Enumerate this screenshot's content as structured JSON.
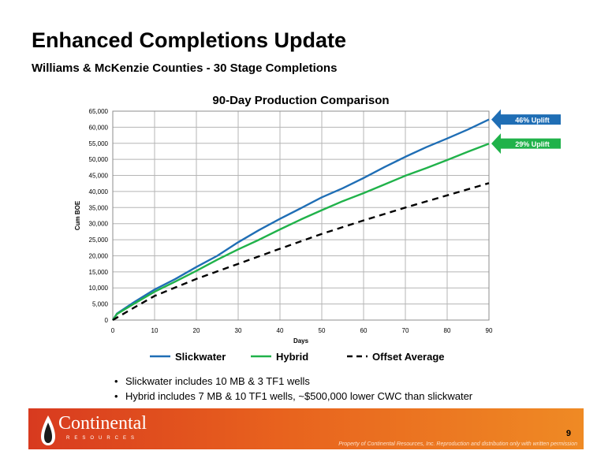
{
  "slide": {
    "title": "Enhanced Completions Update",
    "subtitle": "Williams & McKenzie Counties - 30 Stage Completions"
  },
  "chart_data": {
    "type": "line",
    "title": "90-Day Production Comparison",
    "xlabel": "Days",
    "ylabel": "Cum BOE",
    "xlim": [
      0,
      90
    ],
    "ylim": [
      0,
      65000
    ],
    "x_ticks": [
      0,
      10,
      20,
      30,
      40,
      50,
      60,
      70,
      80,
      90
    ],
    "x_tick_labels": [
      "0",
      "10",
      "20",
      "30",
      "40",
      "50",
      "60",
      "70",
      "80",
      "90"
    ],
    "y_ticks": [
      0,
      5000,
      10000,
      15000,
      20000,
      25000,
      30000,
      35000,
      40000,
      45000,
      50000,
      55000,
      60000,
      65000
    ],
    "y_tick_labels": [
      "0",
      "5,000",
      "10,000",
      "15,000",
      "20,000",
      "25,000",
      "30,000",
      "35,000",
      "40,000",
      "45,000",
      "50,000",
      "55,000",
      "60,000",
      "65,000"
    ],
    "grid": true,
    "legend_position": "bottom",
    "series": [
      {
        "name": "Slickwater",
        "color": "#1f6eb5",
        "style": "solid",
        "x": [
          0,
          1,
          5,
          10,
          15,
          20,
          25,
          30,
          35,
          40,
          45,
          50,
          55,
          60,
          65,
          70,
          75,
          80,
          85,
          90
        ],
        "y": [
          0,
          2000,
          5500,
          9500,
          12800,
          16500,
          20000,
          24200,
          28000,
          31500,
          34800,
          38200,
          41000,
          44200,
          47600,
          50800,
          53800,
          56500,
          59300,
          62400
        ]
      },
      {
        "name": "Hybrid",
        "color": "#20b24a",
        "style": "solid",
        "x": [
          0,
          1,
          5,
          10,
          15,
          20,
          25,
          30,
          35,
          40,
          45,
          50,
          55,
          60,
          65,
          70,
          75,
          80,
          85,
          90
        ],
        "y": [
          0,
          1900,
          5000,
          8800,
          12000,
          15300,
          18800,
          22000,
          25000,
          28200,
          31300,
          34200,
          37000,
          39500,
          42200,
          44900,
          47300,
          49800,
          52400,
          54900
        ]
      },
      {
        "name": "Offset Average",
        "color": "#000000",
        "style": "dashed",
        "x": [
          0,
          5,
          10,
          20,
          30,
          40,
          50,
          60,
          70,
          80,
          90
        ],
        "y": [
          0,
          3800,
          7500,
          12800,
          17500,
          22200,
          26800,
          31000,
          35000,
          38800,
          42600
        ]
      }
    ],
    "annotations": [
      {
        "text": "46% Uplift",
        "target_series": "Slickwater",
        "color": "#1f6eb5"
      },
      {
        "text": "29% Uplift",
        "target_series": "Hybrid",
        "color": "#20b24a"
      }
    ]
  },
  "bullets": [
    "Slickwater includes 10 MB & 3 TF1 wells",
    "Hybrid includes 7 MB & 10 TF1 wells, ~$500,000 lower CWC than slickwater"
  ],
  "footer": {
    "logo_text": "Continental",
    "logo_subtext": "RESOURCES",
    "page_number": "9",
    "note": "Property of Continental Resources, Inc. Reproduction and distribution only with written permission",
    "band_color": "#e8621e"
  }
}
